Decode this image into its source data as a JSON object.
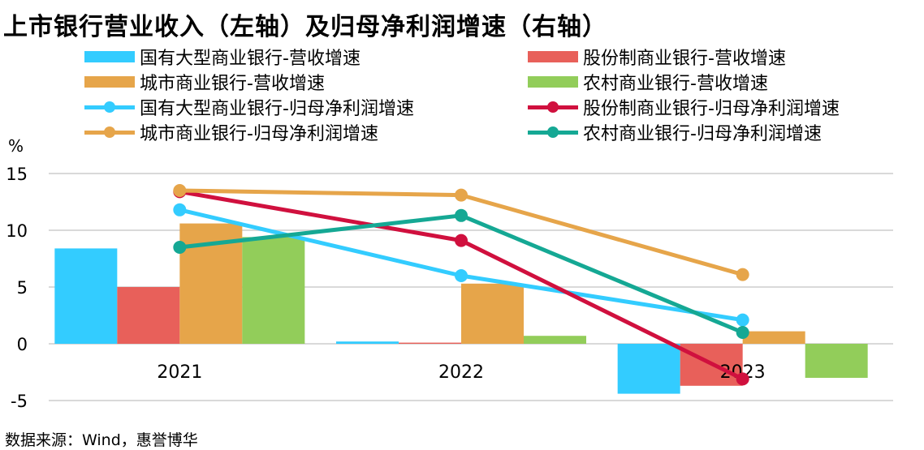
{
  "chart_data": {
    "type": "bar+line",
    "title": "上市银行营业收入（左轴）及归母净利润增速（右轴）",
    "unit_label": "%",
    "source": "数据来源：Wind，惠誉博华",
    "categories": [
      "2021",
      "2022",
      "2023"
    ],
    "ylim": [
      -5,
      15
    ],
    "yticks": [
      15,
      10,
      5,
      0,
      -5
    ],
    "grid": true,
    "bar_series": [
      {
        "name": "国有大型商业银行-营收增速",
        "color": "#33ccff",
        "values": [
          8.4,
          0.2,
          -4.4
        ]
      },
      {
        "name": "股份制商业银行-营收增速",
        "color": "#e8605a",
        "values": [
          5.0,
          0.1,
          -3.7
        ]
      },
      {
        "name": "城市商业银行-营收增速",
        "color": "#e6a54a",
        "values": [
          10.6,
          5.3,
          1.1
        ]
      },
      {
        "name": "农村商业银行-营收增速",
        "color": "#92cd5a",
        "values": [
          9.4,
          0.7,
          -3.0
        ]
      }
    ],
    "line_series": [
      {
        "name": "国有大型商业银行-归母净利润增速",
        "color": "#33ccff",
        "values": [
          11.8,
          6.0,
          2.1
        ]
      },
      {
        "name": "股份制商业银行-归母净利润增速",
        "color": "#d0103e",
        "values": [
          13.4,
          9.1,
          -3.1
        ]
      },
      {
        "name": "城市商业银行-归母净利润增速",
        "color": "#e6a54a",
        "values": [
          13.5,
          13.1,
          6.1
        ]
      },
      {
        "name": "农村商业银行-归母净利润增速",
        "color": "#15a894",
        "values": [
          8.5,
          11.3,
          1.0
        ]
      }
    ]
  }
}
